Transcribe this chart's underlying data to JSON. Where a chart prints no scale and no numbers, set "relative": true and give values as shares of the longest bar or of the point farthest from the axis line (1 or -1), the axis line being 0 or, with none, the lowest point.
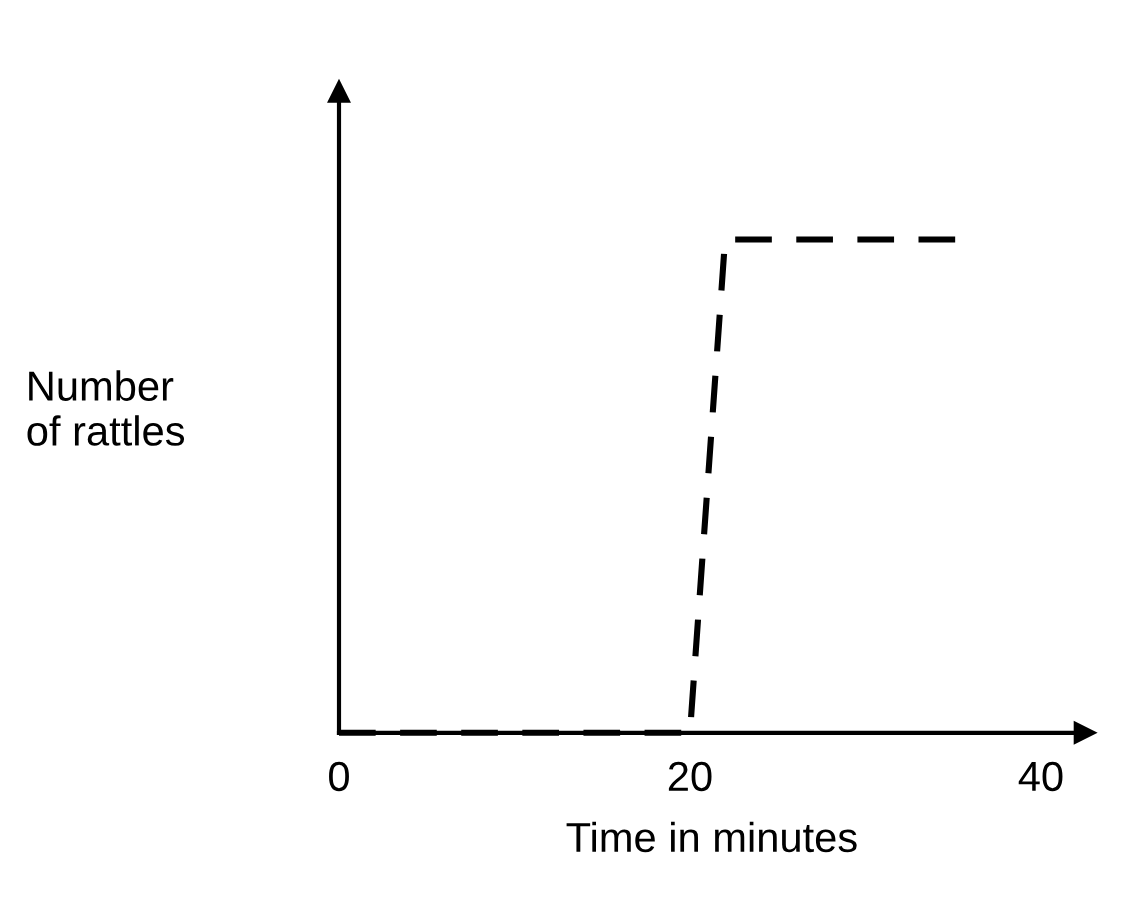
{
  "chart_data": {
    "type": "line",
    "relative": true,
    "xlabel": "Time in minutes",
    "ylabel": "Number\nof rattles",
    "x": [
      0,
      20,
      22,
      36
    ],
    "series": [
      {
        "color": "#000000",
        "values": [
          0,
          0,
          1,
          1
        ]
      }
    ],
    "xlim": [
      0,
      42.5
    ],
    "xticks": [
      0,
      20,
      40
    ],
    "line_style": "dashed",
    "marker": "none"
  }
}
